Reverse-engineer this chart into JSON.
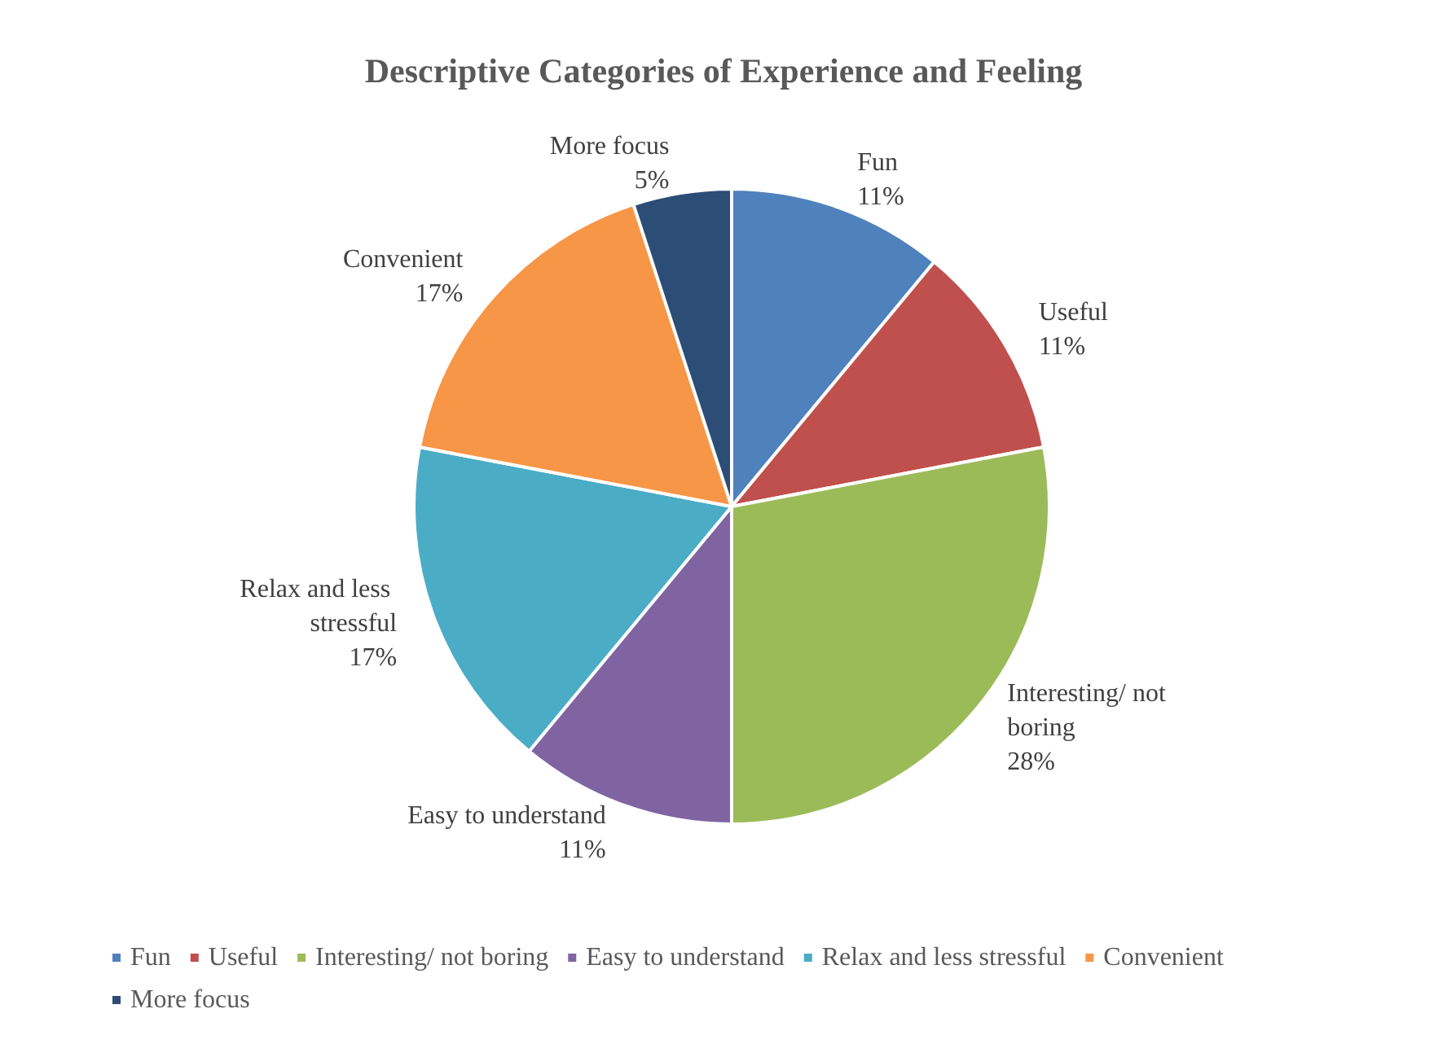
{
  "chart_data": {
    "type": "pie",
    "title": "Descriptive Categories of Experience and Feeling",
    "categories": [
      "Fun",
      "Useful",
      "Interesting/ not boring",
      "Easy to understand",
      "Relax and less stressful",
      "Convenient",
      "More focus"
    ],
    "values": [
      11,
      11,
      28,
      11,
      17,
      17,
      5
    ],
    "colors": [
      "#4f81bd",
      "#c0504d",
      "#9bbb59",
      "#8064a2",
      "#4bacc6",
      "#f79646",
      "#2c4d75"
    ],
    "value_labels": [
      "11%",
      "11%",
      "28%",
      "11%",
      "17%",
      "17%",
      "5%"
    ],
    "legend": "bottom"
  }
}
